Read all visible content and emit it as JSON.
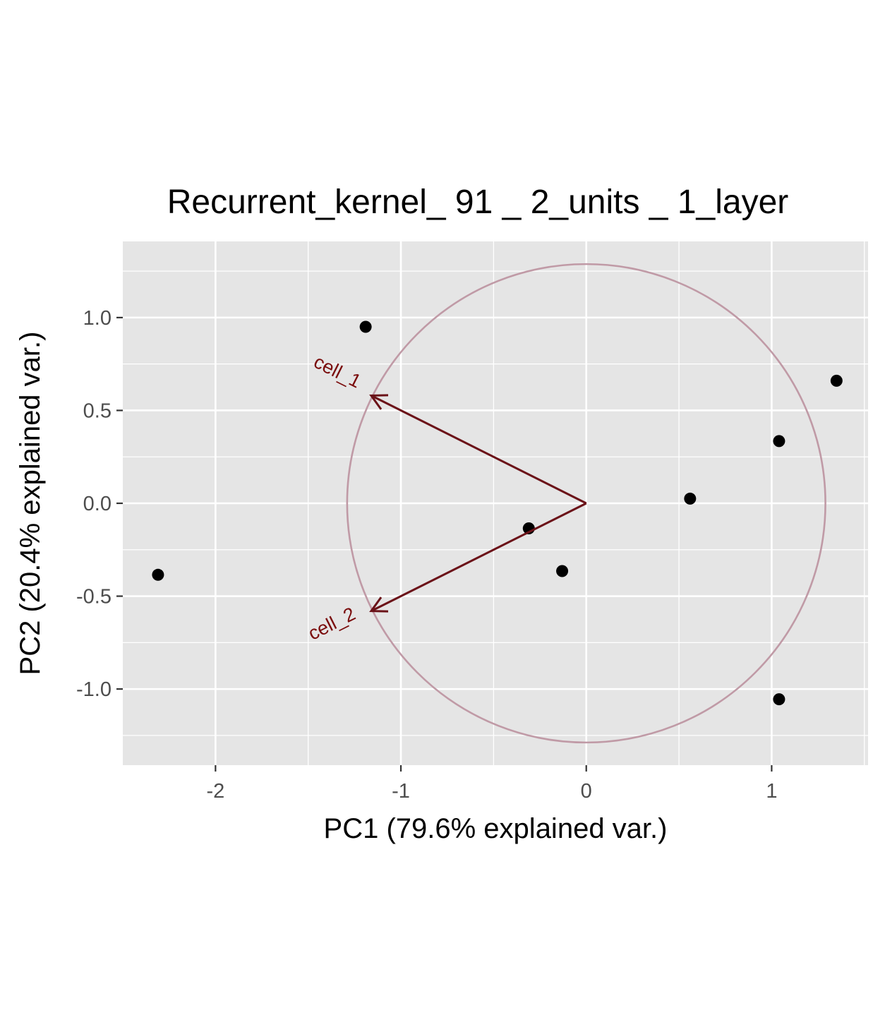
{
  "chart_data": {
    "type": "scatter",
    "title": "Recurrent_kernel_ 91 _ 2_units _ 1_layer",
    "xlabel": "PC1 (79.6% explained var.)",
    "ylabel": "PC2 (20.4% explained var.)",
    "xlim": [
      -2.5,
      1.52
    ],
    "ylim": [
      -1.41,
      1.41
    ],
    "x_ticks": [
      -2,
      -1,
      0,
      1
    ],
    "x_tick_labels": [
      "-2",
      "-1",
      "0",
      "1"
    ],
    "y_ticks": [
      1.0,
      0.5,
      0.0,
      -0.5,
      -1.0
    ],
    "y_tick_labels": [
      "1.0",
      "0.5",
      "0.0",
      "-0.5",
      "-1.0"
    ],
    "grid": true,
    "points": [
      {
        "x": -1.19,
        "y": 0.95
      },
      {
        "x": 1.35,
        "y": 0.66
      },
      {
        "x": 1.04,
        "y": 0.335
      },
      {
        "x": 0.56,
        "y": 0.025
      },
      {
        "x": -0.31,
        "y": -0.135
      },
      {
        "x": -0.13,
        "y": -0.365
      },
      {
        "x": -2.31,
        "y": -0.385
      },
      {
        "x": 1.04,
        "y": -1.055
      }
    ],
    "loadings": [
      {
        "name": "cell_1",
        "x": -1.16,
        "y": 0.58
      },
      {
        "name": "cell_2",
        "x": -1.16,
        "y": -0.58
      }
    ],
    "circle_radius": 1.29,
    "colors": {
      "panel_bg": "#e5e5e5",
      "grid": "#ffffff",
      "point": "#000000",
      "arrow": "#6b1218",
      "arrow_label": "#7a0c0c",
      "circle": "#c09aa6"
    }
  }
}
